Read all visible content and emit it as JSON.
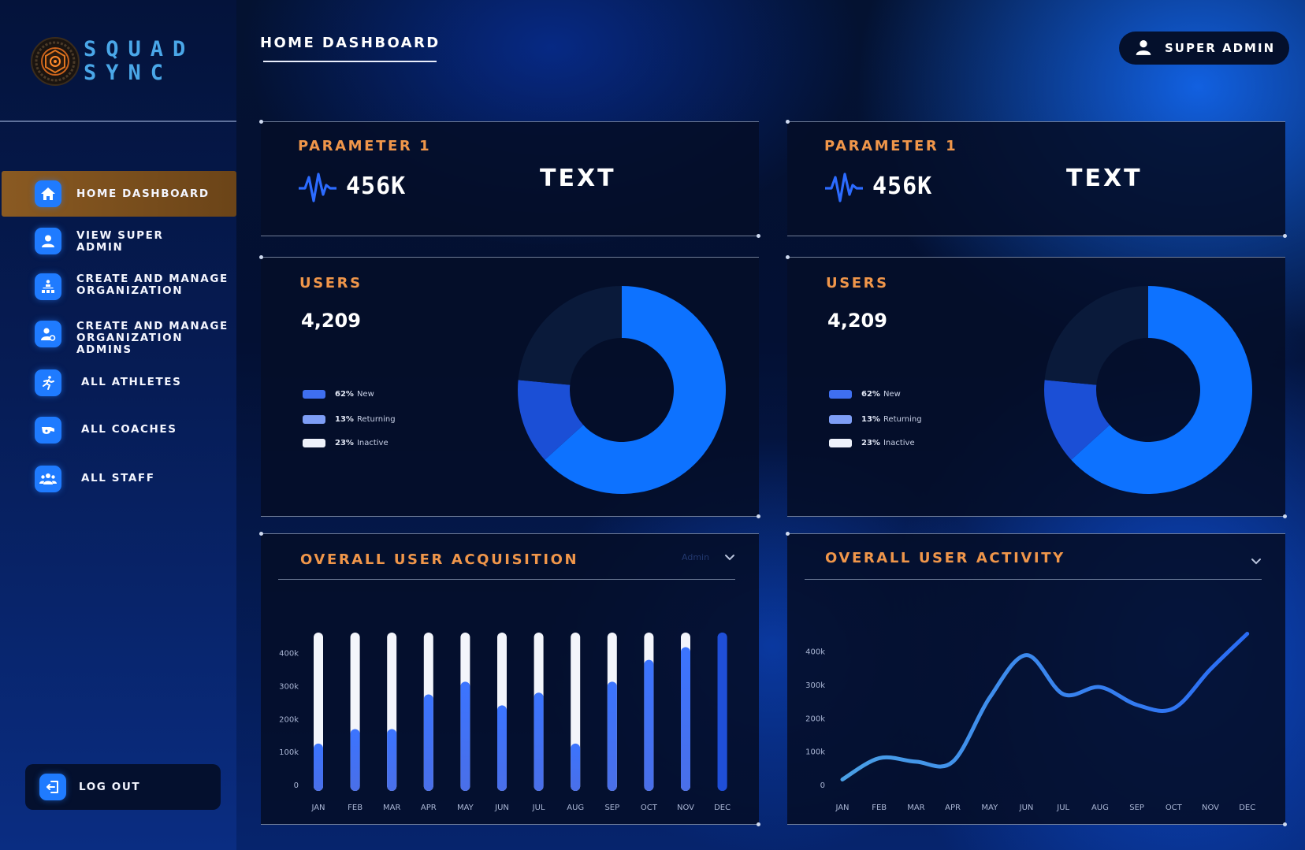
{
  "app": {
    "logo_lines": [
      "SQUAD",
      "SYNC"
    ]
  },
  "header": {
    "title": "HOME DASHBOARD",
    "user_label": "SUPER ADMIN"
  },
  "sidebar": {
    "items": [
      {
        "label": "HOME DASHBOARD",
        "icon": "home-icon",
        "active": true
      },
      {
        "label": "VIEW SUPER\nADMIN",
        "icon": "user-icon",
        "active": false
      },
      {
        "label": "CREATE AND MANAGE\nORGANIZATION",
        "icon": "organization-icon",
        "active": false
      },
      {
        "label": "CREATE AND MANAGE\nORGANIZATION ADMINS",
        "icon": "user-gear-icon",
        "active": false
      },
      {
        "label": "ALL ATHLETES",
        "icon": "runner-icon",
        "active": false
      },
      {
        "label": "ALL COACHES",
        "icon": "whistle-icon",
        "active": false
      },
      {
        "label": "ALL STAFF",
        "icon": "group-icon",
        "active": false
      }
    ],
    "logout_label": "LOG OUT"
  },
  "param_cards": [
    {
      "title": "PARAMETER 1",
      "value": "456K",
      "text": "TEXT"
    },
    {
      "title": "PARAMETER 1",
      "value": "456K",
      "text": "TEXT"
    }
  ],
  "users_cards": [
    {
      "title": "USERS",
      "count": "4,209",
      "legend": [
        {
          "pct": "62%",
          "label": "New",
          "color": "#3f6ff0"
        },
        {
          "pct": "13%",
          "label": "Returning",
          "color": "#7e9ef6"
        },
        {
          "pct": "23%",
          "label": "Inactive",
          "color": "#eef1fa"
        }
      ]
    },
    {
      "title": "USERS",
      "count": "4,209",
      "legend": [
        {
          "pct": "62%",
          "label": "New",
          "color": "#3f6ff0"
        },
        {
          "pct": "13%",
          "label": "Returning",
          "color": "#7e9ef6"
        },
        {
          "pct": "23%",
          "label": "Inactive",
          "color": "#eef1fa"
        }
      ]
    }
  ],
  "acquisition": {
    "title": "OVERALL USER ACQUISITION",
    "dropdown_hint": "Admin"
  },
  "activity": {
    "title": "OVERALL USER ACTIVITY"
  },
  "chart_data": [
    {
      "type": "pie",
      "title": "USERS",
      "labels": [
        "New",
        "Returning",
        "Inactive"
      ],
      "values": [
        62,
        13,
        23
      ],
      "colors": [
        "#0d72ff",
        "#1b4fd6",
        "#0a1a3a"
      ]
    },
    {
      "type": "pie",
      "title": "USERS",
      "labels": [
        "New",
        "Returning",
        "Inactive"
      ],
      "values": [
        62,
        13,
        23
      ],
      "colors": [
        "#0d72ff",
        "#1b4fd6",
        "#0a1a3a"
      ]
    },
    {
      "type": "bar",
      "title": "OVERALL USER ACQUISITION",
      "categories": [
        "JAN",
        "FEB",
        "MAR",
        "APR",
        "MAY",
        "JUN",
        "JUL",
        "AUG",
        "SEP",
        "OCT",
        "NOV",
        "DEC"
      ],
      "values": [
        130000,
        170000,
        170000,
        265000,
        300000,
        235000,
        270000,
        130000,
        300000,
        360000,
        395000,
        435000
      ],
      "ylim": [
        0,
        435000
      ],
      "yticks": [
        "0",
        "100k",
        "200k",
        "300k",
        "400k"
      ],
      "ytick_values": [
        0,
        100000,
        200000,
        300000,
        400000
      ]
    },
    {
      "type": "line",
      "title": "OVERALL USER ACTIVITY",
      "x": [
        "JAN",
        "FEB",
        "MAR",
        "APR",
        "MAY",
        "JUN",
        "JUL",
        "AUG",
        "SEP",
        "OCT",
        "NOV",
        "DEC"
      ],
      "values": [
        10000,
        70000,
        60000,
        60000,
        240000,
        360000,
        250000,
        270000,
        220000,
        210000,
        320000,
        420000
      ],
      "ylim": [
        0,
        430000
      ],
      "yticks": [
        "0",
        "100k",
        "200k",
        "300k",
        "400k"
      ],
      "ytick_values": [
        0,
        100000,
        200000,
        300000,
        400000
      ]
    }
  ]
}
